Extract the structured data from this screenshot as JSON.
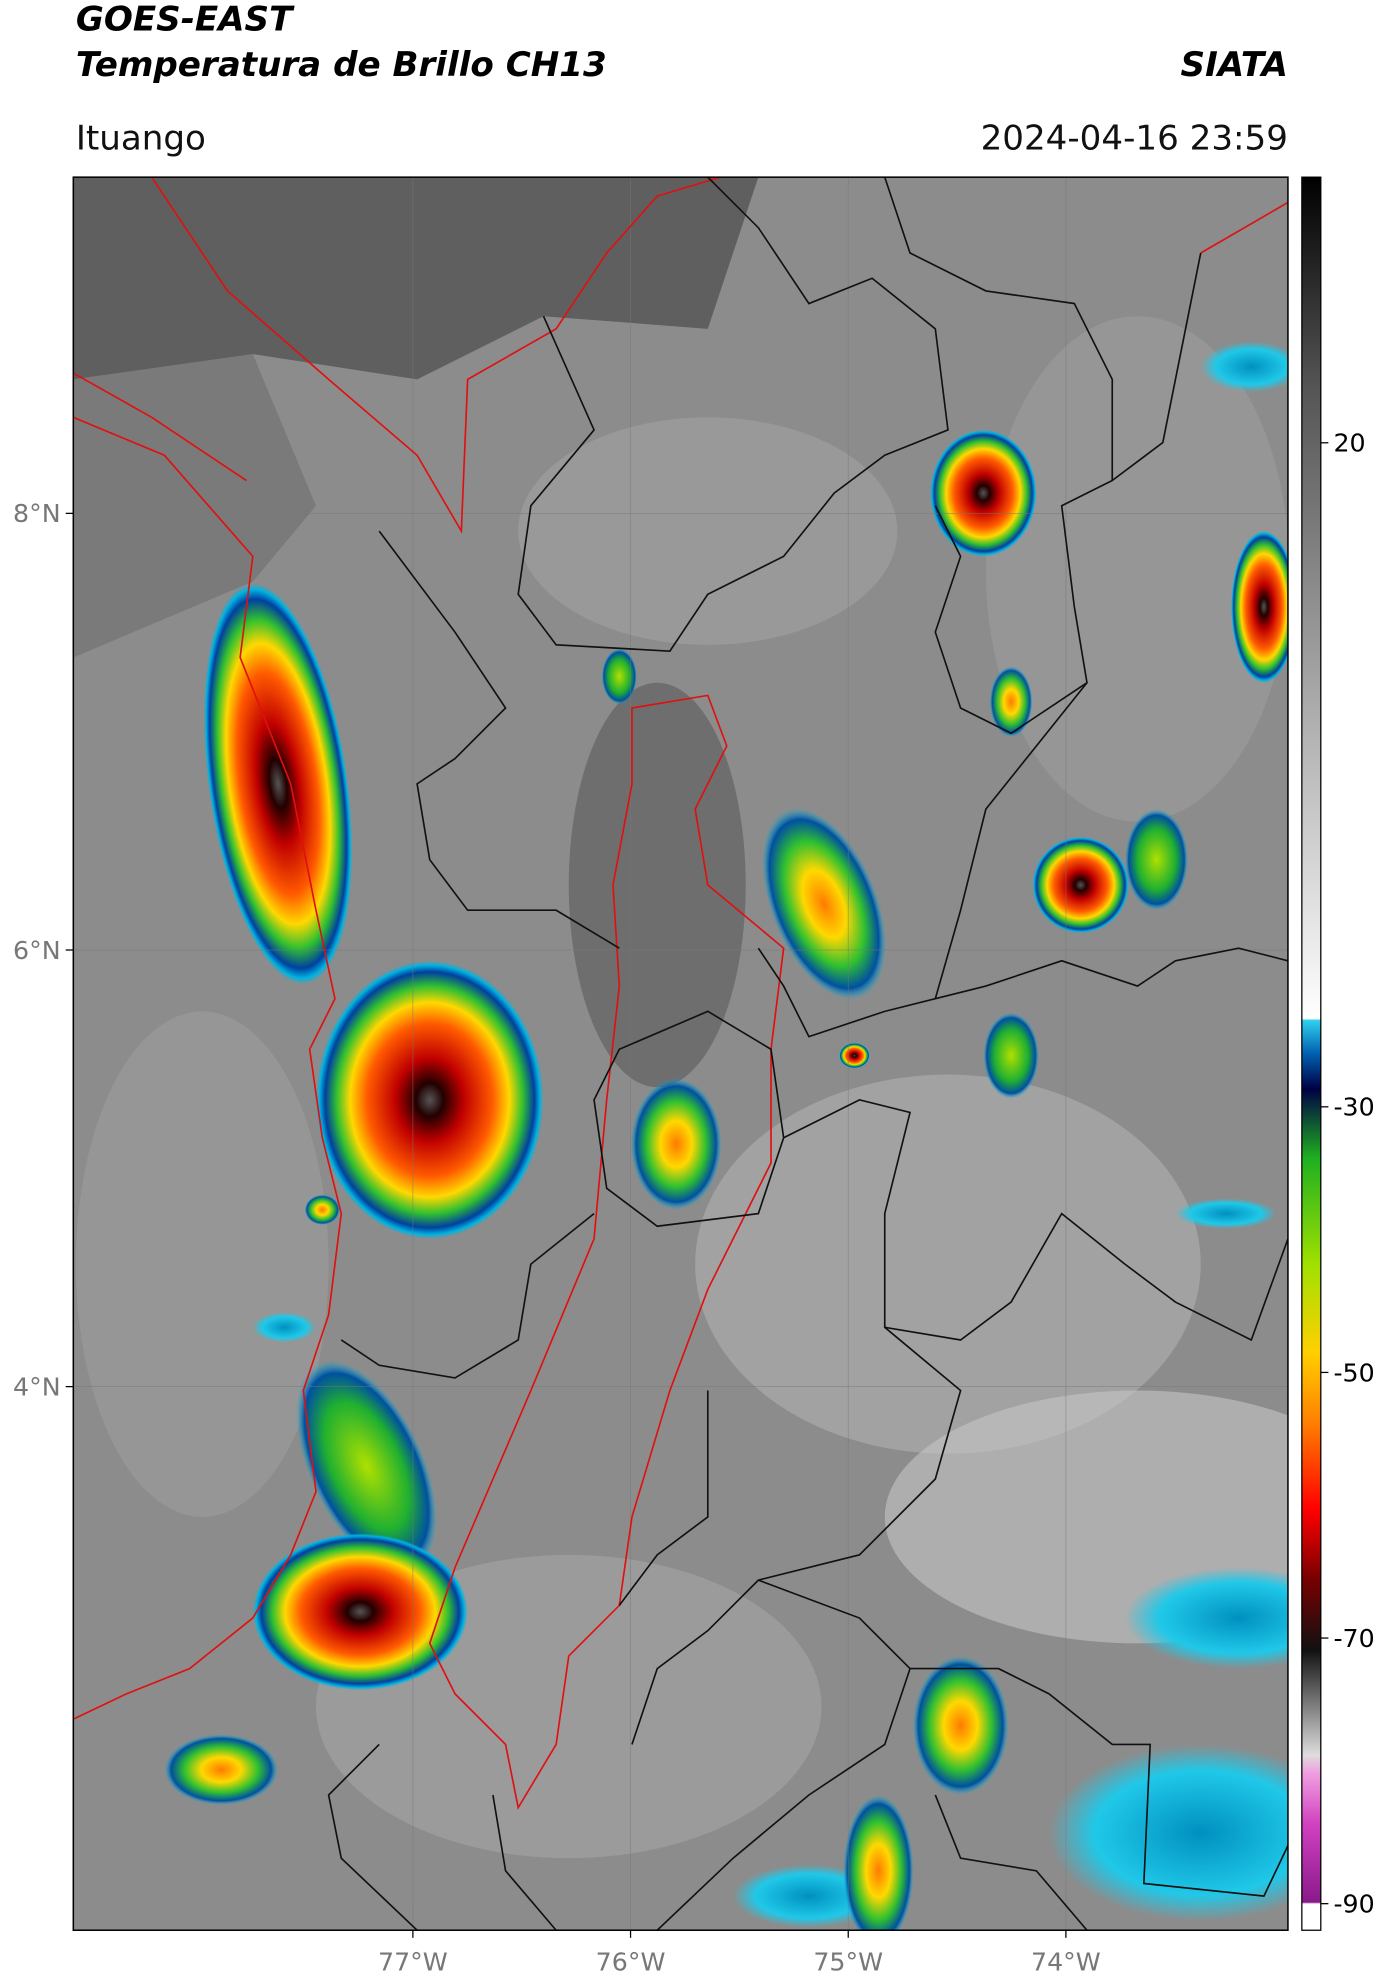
{
  "header": {
    "title": "GOES-EAST",
    "subtitle": "Temperatura de Brillo CH13",
    "source": "SIATA",
    "location": "Ituango",
    "datetime": "2024-04-16 23:59"
  },
  "map": {
    "xlim": [
      -78.56,
      -72.98
    ],
    "ylim": [
      1.51,
      9.54
    ],
    "xticks": [
      {
        "value": -77,
        "label": "77°W"
      },
      {
        "value": -76,
        "label": "76°W"
      },
      {
        "value": -75,
        "label": "75°W"
      },
      {
        "value": -74,
        "label": "74°W"
      }
    ],
    "yticks": [
      {
        "value": 8,
        "label": "8°N"
      },
      {
        "value": 6,
        "label": "6°N"
      },
      {
        "value": 4,
        "label": "4°N"
      }
    ]
  },
  "colorbar": {
    "lim": [
      -92,
      40
    ],
    "ticks": [
      20,
      -30,
      -50,
      -70,
      -90
    ]
  }
}
